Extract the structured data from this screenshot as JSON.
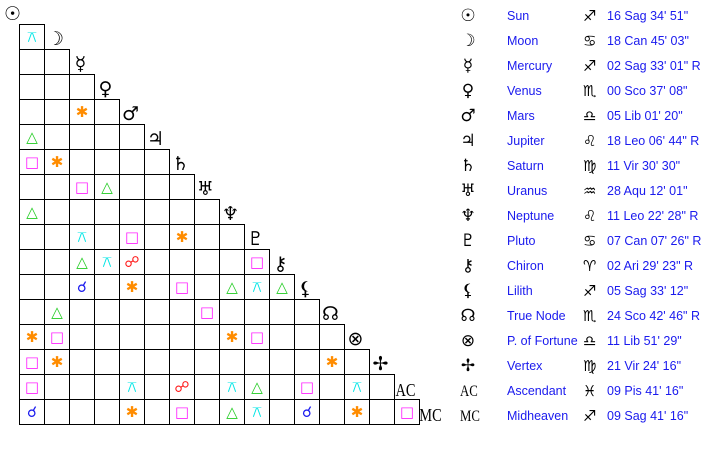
{
  "aspect_styles": {
    "conjunction": {
      "glyph": "☌",
      "color": "#1a1aee"
    },
    "opposition": {
      "glyph": "☍",
      "color": "#ff1a1a"
    },
    "trine": {
      "glyph": "△",
      "color": "#22cc22"
    },
    "square": {
      "glyph": "□",
      "color": "#ff22ff"
    },
    "sextile": {
      "glyph": "✱",
      "color": "#ff8c00"
    },
    "quincunx": {
      "glyph": "⚻",
      "color": "#00e5e5"
    }
  },
  "bodies": [
    {
      "glyph": "☉",
      "name": "Sun",
      "sign": "♐",
      "position": "16 Sag 34' 51\""
    },
    {
      "glyph": "☽",
      "name": "Moon",
      "sign": "♋",
      "position": "18 Can 45' 03\""
    },
    {
      "glyph": "☿",
      "name": "Mercury",
      "sign": "♐",
      "position": "02 Sag 33' 01\" R"
    },
    {
      "glyph": "♀",
      "name": "Venus",
      "sign": "♏",
      "position": "00 Sco 37' 08\""
    },
    {
      "glyph": "♂",
      "name": "Mars",
      "sign": "♎",
      "position": "05 Lib 01' 20\""
    },
    {
      "glyph": "♃",
      "name": "Jupiter",
      "sign": "♌",
      "position": "18 Leo 06' 44\" R"
    },
    {
      "glyph": "♄",
      "name": "Saturn",
      "sign": "♍",
      "position": "11 Vir 30' 30\""
    },
    {
      "glyph": "♅",
      "name": "Uranus",
      "sign": "♒",
      "position": "28 Aqu 12' 01\""
    },
    {
      "glyph": "♆",
      "name": "Neptune",
      "sign": "♌",
      "position": "11 Leo 22' 28\" R"
    },
    {
      "glyph": "♇",
      "name": "Pluto",
      "sign": "♋",
      "position": "07 Can 07' 26\" R"
    },
    {
      "glyph": "⚷",
      "name": "Chiron",
      "sign": "♈",
      "position": "02 Ari 29' 23\" R"
    },
    {
      "glyph": "⚸",
      "name": "Lilith",
      "sign": "♐",
      "position": "05 Sag 33' 12\""
    },
    {
      "glyph": "☊",
      "name": "True Node",
      "sign": "♏",
      "position": "24 Sco 42' 46\" R"
    },
    {
      "glyph": "⊗",
      "name": "P. of Fortune",
      "sign": "♎",
      "position": "11 Lib 51' 29\""
    },
    {
      "glyph": "✢",
      "name": "Vertex",
      "sign": "♍",
      "position": "21 Vir 24' 16\""
    },
    {
      "glyph": "AC",
      "name": "Ascendant",
      "sign": "♓",
      "position": "09 Pis 41' 16\""
    },
    {
      "glyph": "MC",
      "name": "Midheaven",
      "sign": "♐",
      "position": "09 Sag 41' 16\""
    }
  ],
  "aspect_grid": [
    [],
    [
      {
        "col": 0,
        "aspect": "quincunx"
      }
    ],
    [],
    [],
    [
      {
        "col": 2,
        "aspect": "sextile"
      }
    ],
    [
      {
        "col": 0,
        "aspect": "trine"
      }
    ],
    [
      {
        "col": 0,
        "aspect": "square"
      },
      {
        "col": 1,
        "aspect": "sextile"
      }
    ],
    [
      {
        "col": 2,
        "aspect": "square"
      },
      {
        "col": 3,
        "aspect": "trine"
      }
    ],
    [
      {
        "col": 0,
        "aspect": "trine"
      }
    ],
    [
      {
        "col": 2,
        "aspect": "quincunx"
      },
      {
        "col": 4,
        "aspect": "square"
      },
      {
        "col": 6,
        "aspect": "sextile"
      }
    ],
    [
      {
        "col": 2,
        "aspect": "trine"
      },
      {
        "col": 3,
        "aspect": "quincunx"
      },
      {
        "col": 4,
        "aspect": "opposition"
      },
      {
        "col": 9,
        "aspect": "square"
      }
    ],
    [
      {
        "col": 2,
        "aspect": "conjunction"
      },
      {
        "col": 4,
        "aspect": "sextile"
      },
      {
        "col": 6,
        "aspect": "square"
      },
      {
        "col": 8,
        "aspect": "trine"
      },
      {
        "col": 9,
        "aspect": "quincunx"
      },
      {
        "col": 10,
        "aspect": "trine"
      }
    ],
    [
      {
        "col": 1,
        "aspect": "trine"
      },
      {
        "col": 7,
        "aspect": "square"
      }
    ],
    [
      {
        "col": 0,
        "aspect": "sextile"
      },
      {
        "col": 1,
        "aspect": "square"
      },
      {
        "col": 8,
        "aspect": "sextile"
      },
      {
        "col": 9,
        "aspect": "square"
      }
    ],
    [
      {
        "col": 0,
        "aspect": "square"
      },
      {
        "col": 1,
        "aspect": "sextile"
      },
      {
        "col": 12,
        "aspect": "sextile"
      }
    ],
    [
      {
        "col": 0,
        "aspect": "square"
      },
      {
        "col": 4,
        "aspect": "quincunx"
      },
      {
        "col": 6,
        "aspect": "opposition"
      },
      {
        "col": 8,
        "aspect": "quincunx"
      },
      {
        "col": 9,
        "aspect": "trine"
      },
      {
        "col": 11,
        "aspect": "square"
      },
      {
        "col": 13,
        "aspect": "quincunx"
      }
    ],
    [
      {
        "col": 0,
        "aspect": "conjunction"
      },
      {
        "col": 4,
        "aspect": "sextile"
      },
      {
        "col": 6,
        "aspect": "square"
      },
      {
        "col": 8,
        "aspect": "trine"
      },
      {
        "col": 9,
        "aspect": "quincunx"
      },
      {
        "col": 11,
        "aspect": "conjunction"
      },
      {
        "col": 13,
        "aspect": "sextile"
      },
      {
        "col": 15,
        "aspect": "square"
      }
    ]
  ]
}
